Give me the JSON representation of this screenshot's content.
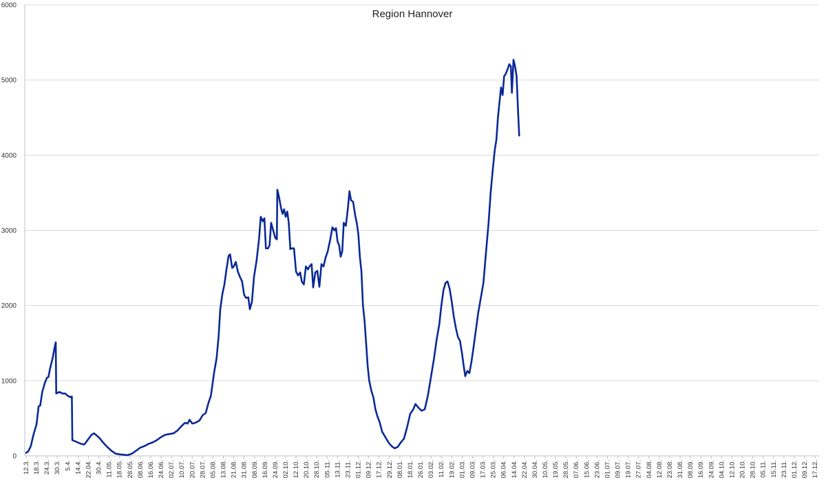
{
  "chart_data": {
    "type": "line",
    "title": "Region Hannover",
    "xlabel": "",
    "ylabel": "",
    "ylim": [
      0,
      6000
    ],
    "yticks": [
      0,
      1000,
      2000,
      3000,
      4000,
      5000,
      6000
    ],
    "grid": true,
    "legend": "none",
    "line_color": "#0a2896",
    "x_tick_labels": [
      "12.3.",
      "18.3.",
      "24.3.",
      "30.3.",
      "5.4.",
      "14.4.",
      "22.04.",
      "30.4.",
      "11.05.",
      "18.05.",
      "28.05.",
      "08.06.",
      "16.06.",
      "24.06.",
      "02.07.",
      "10.07.",
      "20.07.",
      "28.07.",
      "05.08.",
      "13.08.",
      "21.08.",
      "31.08.",
      "08.09.",
      "16.09.",
      "24.09.",
      "02.10.",
      "12.10.",
      "20.10.",
      "28.10.",
      "05.11.",
      "13.11.",
      "23.11.",
      "01.12.",
      "09.12.",
      "17.12.",
      "29.12.",
      "08.01.",
      "18.01.",
      "26.01.",
      "03.02.",
      "11.02.",
      "19.02.",
      "01.03.",
      "09.03.",
      "17.03.",
      "25.03.",
      "06.04.",
      "14.04.",
      "22.04.",
      "30.04.",
      "10.05.",
      "19.05.",
      "28.05.",
      "07.06.",
      "15.06.",
      "23.06.",
      "01.07.",
      "09.07.",
      "19.07.",
      "27.07.",
      "04.08.",
      "12.08.",
      "23.08.",
      "31.08.",
      "08.09.",
      "16.09.",
      "24.09.",
      "04.10.",
      "12.10.",
      "20.10.",
      "28.10.",
      "05.11.",
      "15.11.",
      "23.11.",
      "01.12.",
      "09.12.",
      "17.12."
    ],
    "points": [
      [
        0,
        40
      ],
      [
        0.2,
        60
      ],
      [
        0.45,
        130
      ],
      [
        0.7,
        280
      ],
      [
        1.0,
        420
      ],
      [
        1.2,
        660
      ],
      [
        1.35,
        670
      ],
      [
        1.55,
        850
      ],
      [
        1.8,
        970
      ],
      [
        2.0,
        1040
      ],
      [
        2.15,
        1050
      ],
      [
        2.3,
        1160
      ],
      [
        2.55,
        1300
      ],
      [
        2.75,
        1450
      ],
      [
        2.85,
        1510
      ],
      [
        2.9,
        830
      ],
      [
        3.05,
        840
      ],
      [
        3.2,
        850
      ],
      [
        3.5,
        830
      ],
      [
        3.75,
        830
      ],
      [
        4.0,
        800
      ],
      [
        4.3,
        780
      ],
      [
        4.4,
        790
      ],
      [
        4.45,
        210
      ],
      [
        4.6,
        200
      ],
      [
        4.8,
        190
      ],
      [
        5.2,
        165
      ],
      [
        5.6,
        150
      ],
      [
        6.0,
        225
      ],
      [
        6.3,
        280
      ],
      [
        6.55,
        300
      ],
      [
        6.8,
        270
      ],
      [
        7.05,
        240
      ],
      [
        7.4,
        180
      ],
      [
        7.8,
        120
      ],
      [
        8.2,
        70
      ],
      [
        8.6,
        30
      ],
      [
        9.0,
        20
      ],
      [
        9.4,
        15
      ],
      [
        9.8,
        10
      ],
      [
        10.2,
        30
      ],
      [
        10.6,
        70
      ],
      [
        11.0,
        110
      ],
      [
        11.4,
        130
      ],
      [
        11.8,
        160
      ],
      [
        12.2,
        180
      ],
      [
        12.6,
        210
      ],
      [
        13.0,
        250
      ],
      [
        13.4,
        280
      ],
      [
        13.8,
        290
      ],
      [
        14.2,
        300
      ],
      [
        14.6,
        340
      ],
      [
        15.0,
        400
      ],
      [
        15.3,
        440
      ],
      [
        15.55,
        430
      ],
      [
        15.75,
        480
      ],
      [
        16.0,
        430
      ],
      [
        16.3,
        440
      ],
      [
        16.7,
        470
      ],
      [
        17.0,
        540
      ],
      [
        17.3,
        570
      ],
      [
        17.55,
        700
      ],
      [
        17.8,
        800
      ],
      [
        18.1,
        1100
      ],
      [
        18.35,
        1300
      ],
      [
        18.55,
        1600
      ],
      [
        18.7,
        1950
      ],
      [
        18.9,
        2150
      ],
      [
        19.1,
        2280
      ],
      [
        19.3,
        2480
      ],
      [
        19.5,
        2660
      ],
      [
        19.65,
        2680
      ],
      [
        19.85,
        2500
      ],
      [
        20.0,
        2520
      ],
      [
        20.2,
        2580
      ],
      [
        20.4,
        2450
      ],
      [
        20.6,
        2380
      ],
      [
        20.8,
        2320
      ],
      [
        21.0,
        2140
      ],
      [
        21.2,
        2100
      ],
      [
        21.4,
        2110
      ],
      [
        21.55,
        1950
      ],
      [
        21.75,
        2050
      ],
      [
        21.95,
        2380
      ],
      [
        22.2,
        2600
      ],
      [
        22.45,
        2900
      ],
      [
        22.6,
        3180
      ],
      [
        22.8,
        3120
      ],
      [
        22.95,
        3160
      ],
      [
        23.1,
        2760
      ],
      [
        23.3,
        2760
      ],
      [
        23.45,
        2800
      ],
      [
        23.6,
        3100
      ],
      [
        23.8,
        3000
      ],
      [
        24.0,
        2900
      ],
      [
        24.15,
        2880
      ],
      [
        24.2,
        3540
      ],
      [
        24.35,
        3450
      ],
      [
        24.55,
        3300
      ],
      [
        24.7,
        3220
      ],
      [
        24.85,
        3280
      ],
      [
        25.0,
        3180
      ],
      [
        25.15,
        3250
      ],
      [
        25.3,
        3100
      ],
      [
        25.45,
        2750
      ],
      [
        25.6,
        2760
      ],
      [
        25.8,
        2760
      ],
      [
        26.0,
        2450
      ],
      [
        26.2,
        2400
      ],
      [
        26.4,
        2440
      ],
      [
        26.55,
        2320
      ],
      [
        26.75,
        2280
      ],
      [
        26.95,
        2520
      ],
      [
        27.15,
        2480
      ],
      [
        27.3,
        2520
      ],
      [
        27.5,
        2550
      ],
      [
        27.65,
        2240
      ],
      [
        27.85,
        2440
      ],
      [
        28.05,
        2460
      ],
      [
        28.25,
        2250
      ],
      [
        28.45,
        2550
      ],
      [
        28.65,
        2520
      ],
      [
        28.85,
        2640
      ],
      [
        29.05,
        2720
      ],
      [
        29.3,
        2880
      ],
      [
        29.5,
        3040
      ],
      [
        29.7,
        3000
      ],
      [
        29.85,
        3030
      ],
      [
        30.0,
        2850
      ],
      [
        30.15,
        2800
      ],
      [
        30.3,
        2650
      ],
      [
        30.45,
        2720
      ],
      [
        30.6,
        3100
      ],
      [
        30.8,
        3060
      ],
      [
        31.0,
        3300
      ],
      [
        31.15,
        3520
      ],
      [
        31.3,
        3400
      ],
      [
        31.5,
        3380
      ],
      [
        31.7,
        3200
      ],
      [
        31.85,
        3100
      ],
      [
        32.0,
        2950
      ],
      [
        32.15,
        2650
      ],
      [
        32.3,
        2450
      ],
      [
        32.45,
        2000
      ],
      [
        32.6,
        1800
      ],
      [
        32.75,
        1500
      ],
      [
        32.9,
        1200
      ],
      [
        33.05,
        1000
      ],
      [
        33.25,
        870
      ],
      [
        33.45,
        780
      ],
      [
        33.65,
        620
      ],
      [
        33.85,
        520
      ],
      [
        34.05,
        450
      ],
      [
        34.3,
        320
      ],
      [
        34.6,
        250
      ],
      [
        34.9,
        180
      ],
      [
        35.2,
        130
      ],
      [
        35.5,
        100
      ],
      [
        35.8,
        120
      ],
      [
        36.1,
        180
      ],
      [
        36.4,
        230
      ],
      [
        36.7,
        380
      ],
      [
        37.0,
        560
      ],
      [
        37.3,
        620
      ],
      [
        37.5,
        690
      ],
      [
        37.8,
        640
      ],
      [
        38.1,
        600
      ],
      [
        38.4,
        620
      ],
      [
        38.7,
        800
      ],
      [
        39.0,
        1050
      ],
      [
        39.3,
        1300
      ],
      [
        39.55,
        1550
      ],
      [
        39.8,
        1750
      ],
      [
        40.0,
        2000
      ],
      [
        40.2,
        2200
      ],
      [
        40.4,
        2300
      ],
      [
        40.6,
        2320
      ],
      [
        40.8,
        2220
      ],
      [
        41.0,
        2050
      ],
      [
        41.2,
        1850
      ],
      [
        41.4,
        1700
      ],
      [
        41.6,
        1580
      ],
      [
        41.8,
        1530
      ],
      [
        42.0,
        1350
      ],
      [
        42.15,
        1200
      ],
      [
        42.3,
        1060
      ],
      [
        42.5,
        1130
      ],
      [
        42.7,
        1100
      ],
      [
        42.9,
        1250
      ],
      [
        43.1,
        1440
      ],
      [
        43.3,
        1650
      ],
      [
        43.55,
        1900
      ],
      [
        43.8,
        2100
      ],
      [
        44.05,
        2300
      ],
      [
        44.3,
        2700
      ],
      [
        44.55,
        3100
      ],
      [
        44.75,
        3500
      ],
      [
        44.95,
        3800
      ],
      [
        45.15,
        4080
      ],
      [
        45.3,
        4200
      ],
      [
        45.45,
        4500
      ],
      [
        45.6,
        4700
      ],
      [
        45.75,
        4900
      ],
      [
        45.9,
        4800
      ],
      [
        46.05,
        5050
      ],
      [
        46.2,
        5080
      ],
      [
        46.4,
        5150
      ],
      [
        46.55,
        5210
      ],
      [
        46.7,
        5180
      ],
      [
        46.8,
        4830
      ],
      [
        46.95,
        5270
      ],
      [
        47.1,
        5180
      ],
      [
        47.25,
        5050
      ],
      [
        47.4,
        4550
      ],
      [
        47.5,
        4260
      ]
    ]
  }
}
